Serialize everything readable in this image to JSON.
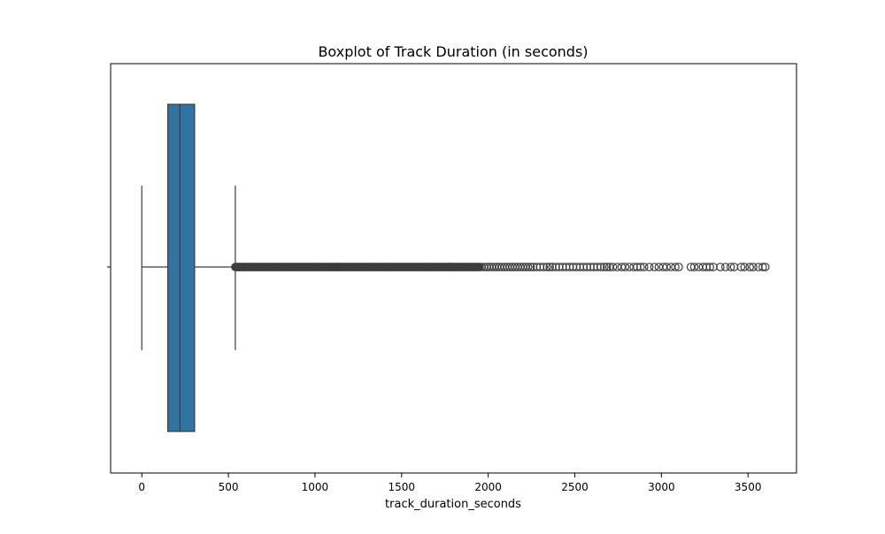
{
  "chart_data": {
    "type": "boxplot",
    "title": "Boxplot of Track Duration (in seconds)",
    "xlabel": "track_duration_seconds",
    "ylabel": "",
    "xlim": [
      -180,
      3780
    ],
    "xticks": [
      0,
      500,
      1000,
      1500,
      2000,
      2500,
      3000,
      3500
    ],
    "xtick_labels": [
      "0",
      "500",
      "1000",
      "1500",
      "2000",
      "2500",
      "3000",
      "3500"
    ],
    "orientation": "horizontal",
    "grid": false,
    "legend": "none",
    "box": {
      "whisker_low": 0,
      "q1": 150,
      "median": 220,
      "q3": 305,
      "whisker_high": 540
    },
    "outlier_dense_range": [
      540,
      1950
    ],
    "outliers_sparse": [
      1960,
      1975,
      1990,
      2005,
      2020,
      2035,
      2050,
      2065,
      2080,
      2095,
      2110,
      2125,
      2140,
      2155,
      2170,
      2185,
      2200,
      2215,
      2230,
      2245,
      2260,
      2280,
      2300,
      2320,
      2340,
      2355,
      2370,
      2390,
      2410,
      2430,
      2450,
      2470,
      2490,
      2510,
      2530,
      2550,
      2570,
      2590,
      2610,
      2630,
      2650,
      2670,
      2685,
      2700,
      2720,
      2745,
      2770,
      2790,
      2815,
      2840,
      2860,
      2880,
      2900,
      2930,
      2960,
      2985,
      3010,
      3030,
      3055,
      3080,
      3100,
      3170,
      3190,
      3215,
      3240,
      3260,
      3280,
      3300,
      3340,
      3370,
      3400,
      3420,
      3460,
      3480,
      3510,
      3530,
      3560,
      3585,
      3600
    ],
    "colors": {
      "box_fill": "#3274a1",
      "line": "#3d3d3d",
      "outlier_edge": "#3d3d3d",
      "frame": "#000000"
    }
  }
}
